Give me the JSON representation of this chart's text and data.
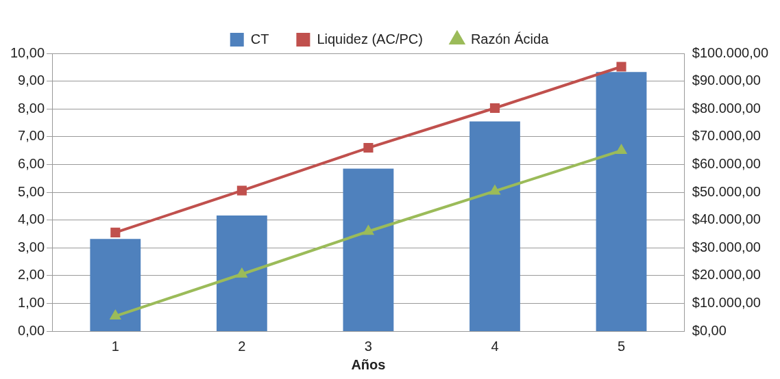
{
  "chart_data": {
    "type": "bar",
    "xlabel": "Años",
    "categories": [
      "1",
      "2",
      "3",
      "4",
      "5"
    ],
    "series": [
      {
        "name": "CT",
        "axis": "y2",
        "color": "#4f81bd",
        "values": [
          33200,
          41600,
          58500,
          75500,
          93300
        ]
      },
      {
        "name": "Liquidez (AC/PC)",
        "type": "line",
        "marker": "square",
        "color": "#c0504d",
        "values": [
          3.55,
          5.06,
          6.6,
          8.03,
          9.52
        ]
      },
      {
        "name": "Razón Ácida",
        "type": "line",
        "marker": "triangle",
        "color": "#9bbb59",
        "values": [
          0.54,
          2.05,
          3.59,
          5.04,
          6.5
        ]
      }
    ],
    "ylim": [
      0,
      10
    ],
    "yticks": [
      {
        "value": 0,
        "label": "0,00"
      },
      {
        "value": 1,
        "label": "1,00"
      },
      {
        "value": 2,
        "label": "2,00"
      },
      {
        "value": 3,
        "label": "3,00"
      },
      {
        "value": 4,
        "label": "4,00"
      },
      {
        "value": 5,
        "label": "5,00"
      },
      {
        "value": 6,
        "label": "6,00"
      },
      {
        "value": 7,
        "label": "7,00"
      },
      {
        "value": 8,
        "label": "8,00"
      },
      {
        "value": 9,
        "label": "9,00"
      },
      {
        "value": 10,
        "label": "10,00"
      }
    ],
    "y2lim": [
      0,
      100000
    ],
    "y2ticks": [
      {
        "value": 0,
        "label": "$0,00"
      },
      {
        "value": 10000,
        "label": "$10.000,00"
      },
      {
        "value": 20000,
        "label": "$20.000,00"
      },
      {
        "value": 30000,
        "label": "$30.000,00"
      },
      {
        "value": 40000,
        "label": "$40.000,00"
      },
      {
        "value": 50000,
        "label": "$50.000,00"
      },
      {
        "value": 60000,
        "label": "$60.000,00"
      },
      {
        "value": 70000,
        "label": "$70.000,00"
      },
      {
        "value": 80000,
        "label": "$80.000,00"
      },
      {
        "value": 90000,
        "label": "$90.000,00"
      },
      {
        "value": 100000,
        "label": "$100.000,00"
      }
    ],
    "grid": "y",
    "legend": "top"
  }
}
